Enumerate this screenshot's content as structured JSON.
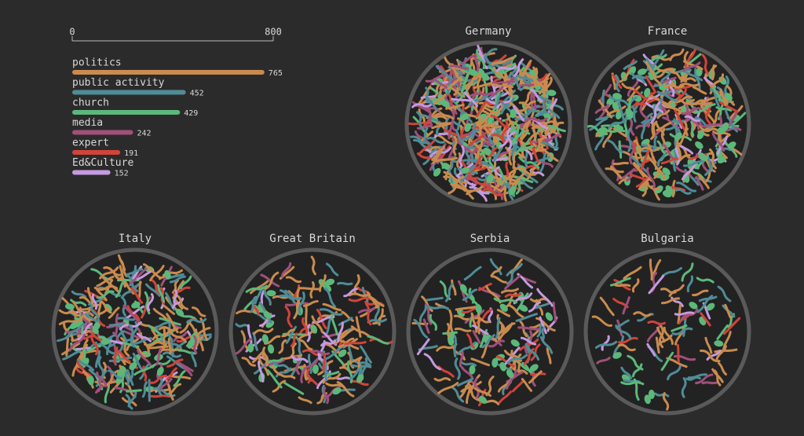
{
  "chart_data": {
    "type": "bar",
    "orientation": "horizontal",
    "categories": [
      "politics",
      "public activity",
      "church",
      "media",
      "expert",
      "Ed&Culture"
    ],
    "values": [
      765,
      452,
      429,
      242,
      191,
      152
    ],
    "colors": [
      "#c98b4e",
      "#4f8c96",
      "#5cb87a",
      "#a0507a",
      "#d0443a",
      "#c49ae0"
    ],
    "xlim": [
      0,
      800
    ],
    "xticks": [
      0,
      800
    ]
  },
  "countries": [
    "Germany",
    "France",
    "Italy",
    "Great Britain",
    "Serbia",
    "Bulgaria"
  ]
}
